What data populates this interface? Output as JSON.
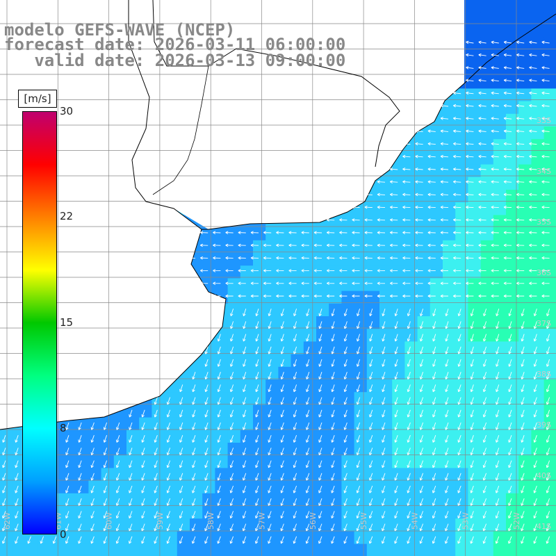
{
  "title": {
    "line1": "modelo GEFS-WAVE (NCEP)",
    "line2": "forecast date: 2026-03-11 06:00:00",
    "line3": "   valid date: 2026-03-13 09:00:00"
  },
  "colorbar": {
    "unit": "[m/s]",
    "ticks": [
      "30",
      "22",
      "15",
      "8",
      "0"
    ],
    "range": [
      0,
      30
    ],
    "gradient_colors": [
      "#0000ff",
      "#00a0ff",
      "#00ffff",
      "#00ff80",
      "#00c800",
      "#ffff00",
      "#ff8000",
      "#ff0000",
      "#c0006f"
    ]
  },
  "lat_labels": [
    "33S",
    "34S",
    "35S",
    "36S",
    "37S",
    "38S",
    "39S",
    "40S",
    "41S"
  ],
  "lon_labels": [
    "62W",
    "61W",
    "60W",
    "59W",
    "58W",
    "57W",
    "56W",
    "55W",
    "54W",
    "53W",
    "52W",
    "51W"
  ],
  "field": {
    "variable": "wind speed",
    "lon_range": [
      -62.5,
      -51.5
    ],
    "lat_range": [
      -41.3,
      -31.0
    ]
  },
  "colors": {
    "land": "#ffffff",
    "grid": "#888888",
    "coast": "#000000",
    "arrows": "#ffffff"
  }
}
